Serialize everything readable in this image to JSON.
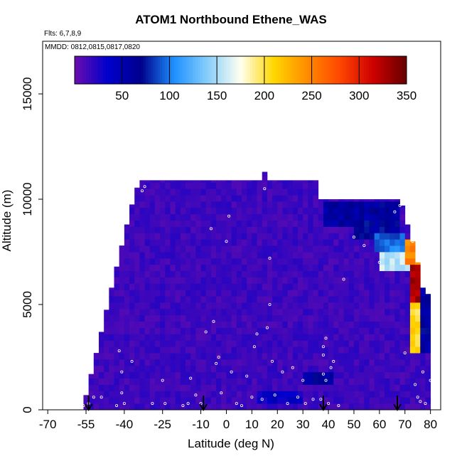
{
  "chart_data": {
    "type": "heatmap",
    "title": "ATOM1 Northbound Ethene_WAS",
    "flights_text": "Flts: 6,7,8,9",
    "dates_text": "MMDD: 0812,0815,0817,0820",
    "xlabel": "Latitude (deg N)",
    "ylabel": "Altitude (m)",
    "xlim": [
      -72,
      84
    ],
    "ylim": [
      0,
      17500
    ],
    "x_ticks": [
      -70,
      -55,
      -40,
      -25,
      -10,
      0,
      10,
      20,
      30,
      40,
      50,
      60,
      70,
      80
    ],
    "y_ticks": [
      0,
      5000,
      10000,
      15000
    ],
    "colorbar": {
      "range": [
        0,
        350
      ],
      "ticks": [
        50,
        100,
        150,
        200,
        250,
        300,
        350
      ],
      "legend_placement": "top-inside",
      "colors": [
        "#6a0dad",
        "#0000cd",
        "#00008b",
        "#1e90ff",
        "#87cefa",
        "#fffff0",
        "#ffd700",
        "#ff8c00",
        "#ff4500",
        "#cc0000",
        "#660000"
      ]
    },
    "background_value": 12,
    "top_boundary": [
      [
        -56,
        200
      ],
      [
        -54,
        1200
      ],
      [
        -52,
        2200
      ],
      [
        -50,
        3200
      ],
      [
        -48,
        4200
      ],
      [
        -46,
        5300
      ],
      [
        -44,
        6300
      ],
      [
        -42,
        7300
      ],
      [
        -40,
        8300
      ],
      [
        -38,
        9300
      ],
      [
        -36,
        10200
      ],
      [
        -34,
        10900
      ],
      [
        -25,
        10900
      ],
      [
        -10,
        10900
      ],
      [
        0,
        10900
      ],
      [
        13,
        10900
      ],
      [
        14,
        11300
      ],
      [
        15,
        11300
      ],
      [
        16,
        10900
      ],
      [
        35,
        10900
      ],
      [
        36,
        10000
      ],
      [
        50,
        10000
      ],
      [
        68,
        10000
      ],
      [
        69,
        9700
      ],
      [
        70,
        9500
      ],
      [
        71,
        8800
      ],
      [
        73,
        8000
      ],
      [
        75,
        7000
      ],
      [
        76,
        6000
      ],
      [
        77,
        5800
      ],
      [
        78,
        5500
      ],
      [
        80,
        5500
      ]
    ],
    "plumes": [
      {
        "lat_range": [
          38,
          68
        ],
        "alt_range": [
          8800,
          10000
        ],
        "value": 55
      },
      {
        "lat_range": [
          50,
          68
        ],
        "alt_range": [
          8200,
          9000
        ],
        "value": 58
      },
      {
        "lat_range": [
          58,
          70
        ],
        "alt_range": [
          7500,
          8300
        ],
        "value": 90
      },
      {
        "lat_range": [
          60,
          72
        ],
        "alt_range": [
          6500,
          7500
        ],
        "value": 150
      },
      {
        "lat_range": [
          70,
          75
        ],
        "alt_range": [
          7000,
          8200
        ],
        "value": 240
      },
      {
        "lat_range": [
          72,
          75
        ],
        "alt_range": [
          5000,
          7000
        ],
        "value": 320
      },
      {
        "lat_range": [
          72,
          76
        ],
        "alt_range": [
          2800,
          5000
        ],
        "value": 200
      },
      {
        "lat_range": [
          75,
          80
        ],
        "alt_range": [
          2800,
          6000
        ],
        "value": 55
      },
      {
        "lat_range": [
          30,
          42
        ],
        "alt_range": [
          1100,
          1800
        ],
        "value": 55
      },
      {
        "lat_range": [
          12,
          30
        ],
        "alt_range": [
          200,
          800
        ],
        "value": 30
      }
    ],
    "samples": [
      [
        -56,
        200
      ],
      [
        -54,
        300
      ],
      [
        -52,
        600
      ],
      [
        -49,
        600
      ],
      [
        -43,
        200
      ],
      [
        -42,
        2800
      ],
      [
        -41,
        1800
      ],
      [
        -41,
        800
      ],
      [
        -40,
        300
      ],
      [
        -37,
        2300
      ],
      [
        -33,
        10400
      ],
      [
        -32,
        10600
      ],
      [
        -29,
        300
      ],
      [
        -25,
        1400
      ],
      [
        -24,
        300
      ],
      [
        -17,
        200
      ],
      [
        -15,
        300
      ],
      [
        -14,
        1500
      ],
      [
        -12,
        700
      ],
      [
        -10,
        300
      ],
      [
        -8,
        3700
      ],
      [
        -6,
        8600
      ],
      [
        -5,
        4200
      ],
      [
        -4,
        2200
      ],
      [
        -3,
        2500
      ],
      [
        -2,
        800
      ],
      [
        0,
        8000
      ],
      [
        1,
        9200
      ],
      [
        2,
        1800
      ],
      [
        4,
        300
      ],
      [
        6,
        200
      ],
      [
        8,
        1600
      ],
      [
        10,
        600
      ],
      [
        11,
        3000
      ],
      [
        12,
        3600
      ],
      [
        14,
        500
      ],
      [
        15,
        10500
      ],
      [
        16,
        3900
      ],
      [
        17,
        7200
      ],
      [
        17,
        5000
      ],
      [
        18,
        2300
      ],
      [
        19,
        700
      ],
      [
        22,
        1800
      ],
      [
        24,
        300
      ],
      [
        26,
        2000
      ],
      [
        28,
        600
      ],
      [
        30,
        1400
      ],
      [
        31,
        300
      ],
      [
        34,
        500
      ],
      [
        37,
        500
      ],
      [
        38,
        1700
      ],
      [
        38,
        2600
      ],
      [
        38,
        3000
      ],
      [
        39,
        3400
      ],
      [
        39,
        1400
      ],
      [
        40,
        300
      ],
      [
        41,
        2000
      ],
      [
        42,
        2300
      ],
      [
        44,
        200
      ],
      [
        46,
        6200
      ],
      [
        50,
        8200
      ],
      [
        52,
        10200
      ],
      [
        54,
        7800
      ],
      [
        60,
        7000
      ],
      [
        66,
        9400
      ],
      [
        68,
        9700
      ],
      [
        70,
        2700
      ],
      [
        72,
        9300
      ],
      [
        73,
        8000
      ],
      [
        74,
        1200
      ],
      [
        75,
        600
      ],
      [
        76,
        400
      ],
      [
        77,
        1800
      ],
      [
        78,
        300
      ],
      [
        80,
        1400
      ]
    ],
    "markers": [
      {
        "lat": -54
      },
      {
        "lat": -9
      },
      {
        "lat": 38
      },
      {
        "lat": 67
      }
    ]
  }
}
